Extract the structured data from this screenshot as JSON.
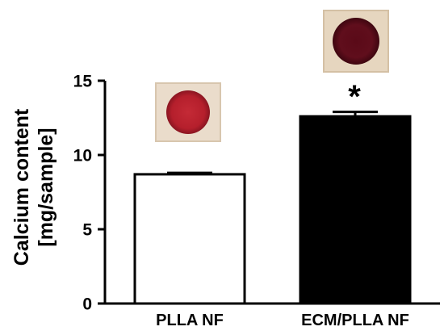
{
  "chart_data": {
    "type": "bar",
    "categories": [
      "PLLA NF",
      "ECM/PLLA NF"
    ],
    "values": [
      8.7,
      12.6
    ],
    "errors": [
      0.1,
      0.3
    ],
    "bar_colors": [
      "#ffffff",
      "#000000"
    ],
    "ylabel_line1": "Calcium content",
    "ylabel_line2": "[mg/sample]",
    "ylim": [
      0,
      15
    ],
    "yticks": [
      "0",
      "5",
      "10",
      "15"
    ],
    "annotations": [
      {
        "category": "ECM/PLLA NF",
        "text": "*"
      }
    ],
    "grid": false,
    "legend": "none"
  },
  "sample_images": [
    {
      "category": "PLLA NF",
      "stain_color": "#b81f2c",
      "background": "#eadccb"
    },
    {
      "category": "ECM/PLLA NF",
      "stain_color": "#5e0d1a",
      "background": "#e6d6bf"
    }
  ]
}
